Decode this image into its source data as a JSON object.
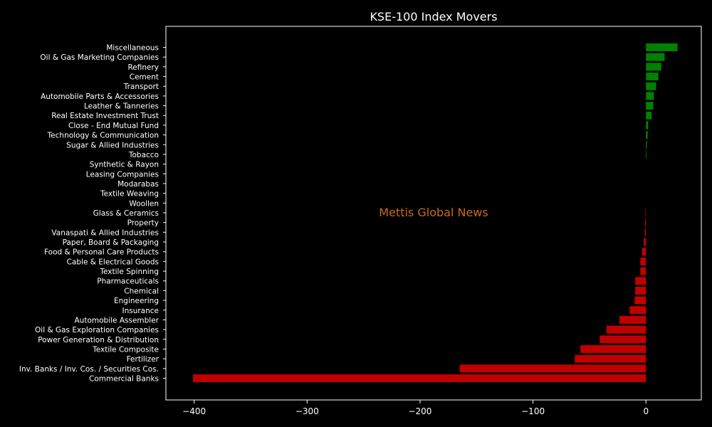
{
  "chart_data": {
    "type": "bar",
    "orientation": "horizontal",
    "title": "KSE-100 Index Movers",
    "watermark": "Mettis Global News",
    "xlabel": "",
    "ylabel": "",
    "xlim": [
      -425,
      49
    ],
    "xticks": [
      -400,
      -300,
      -200,
      -100,
      0
    ],
    "xtick_labels": [
      "−400",
      "−300",
      "−200",
      "−100",
      "0"
    ],
    "grid": false,
    "colors": {
      "background": "#000000",
      "text": "#ffffff",
      "positive": "#008000",
      "negative": "#c00000",
      "watermark": "#c8691c"
    },
    "categories": [
      "Miscellaneous",
      "Oil & Gas Marketing Companies",
      "Refinery",
      "Cement",
      "Transport",
      "Automobile Parts & Accessories",
      "Leather & Tanneries",
      "Real Estate Investment Trust",
      "Close - End Mutual Fund",
      "Technology & Communication",
      "Sugar & Allied Industries",
      "Tobacco",
      "Synthetic & Rayon",
      "Leasing Companies",
      "Modarabas",
      "Textile Weaving",
      "Woollen",
      "Glass & Ceramics",
      "Property",
      "Vanaspati & Allied Industries",
      "Paper, Board & Packaging",
      "Food & Personal Care Products",
      "Cable & Electrical Goods",
      "Textile Spinning",
      "Pharmaceuticals",
      "Chemical",
      "Engineering",
      "Insurance",
      "Automobile Assembler",
      "Oil & Gas Exploration Companies",
      "Power Generation & Distribution",
      "Textile Composite",
      "Fertilizer",
      "Inv. Banks / Inv. Cos. / Securities Cos.",
      "Commercial Banks"
    ],
    "values": [
      28,
      16.5,
      13.5,
      11,
      9,
      7,
      6.5,
      5,
      2,
      1.5,
      0.8,
      0.5,
      0,
      0,
      0,
      0,
      0,
      -0.5,
      -0.8,
      -1,
      -2,
      -3.5,
      -5,
      -5,
      -9.5,
      -9.5,
      -10,
      -14.5,
      -23.5,
      -35,
      -41,
      -58,
      -63,
      -165,
      -401
    ]
  }
}
